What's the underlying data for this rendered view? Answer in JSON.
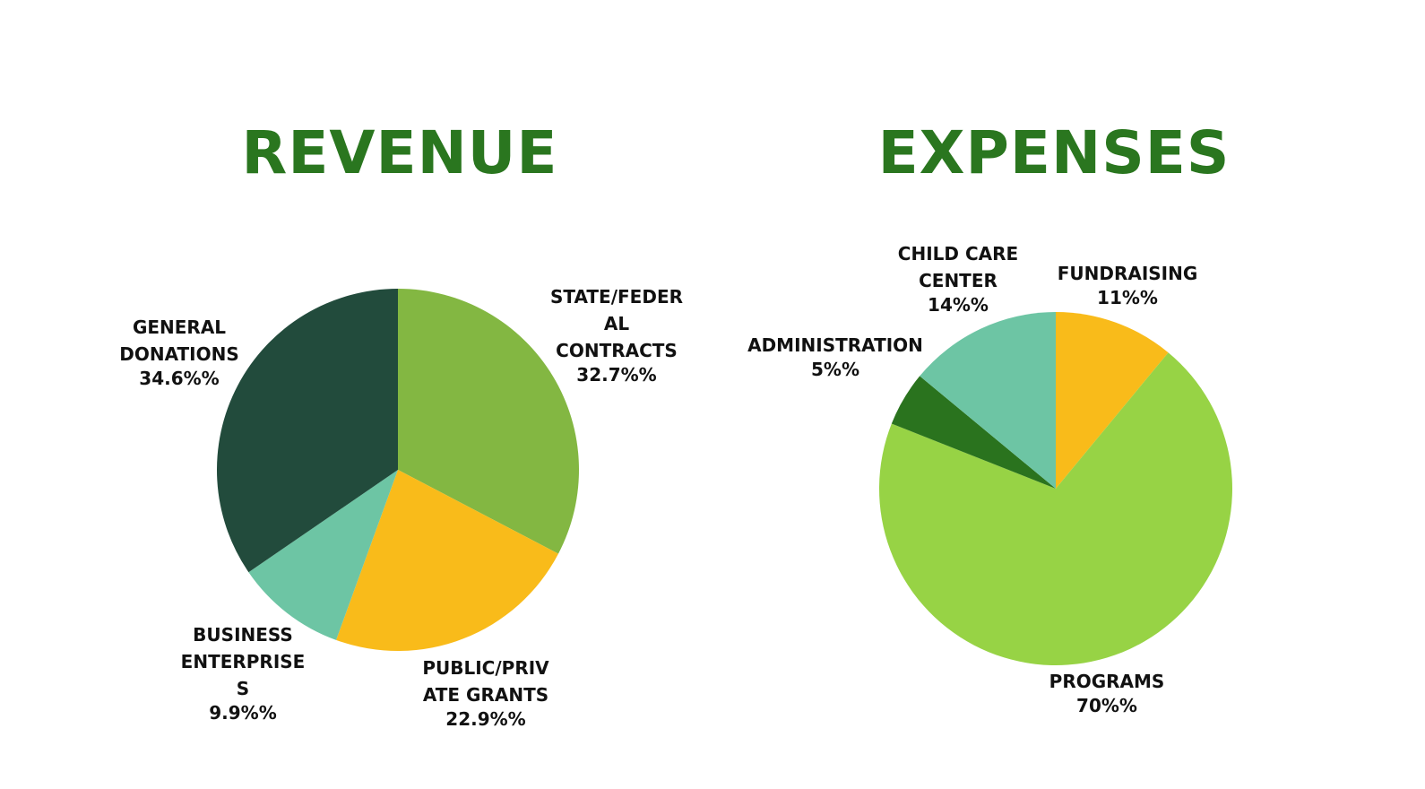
{
  "colors": {
    "title": "#2a761f",
    "label": "#111111",
    "dark_green": "#224b3c",
    "olive_green": "#83b742",
    "yellow": "#f9bb1a",
    "mint": "#6dc5a4",
    "lime": "#97d345",
    "forest_green": "#2a731e"
  },
  "chart_data": [
    {
      "type": "pie",
      "title": "REVENUE",
      "slices": [
        {
          "label_lines": [
            "STATE/FEDER",
            "AL",
            "CONTRACTS"
          ],
          "percent_text": "32.7%%",
          "value": 32.7,
          "color": "#83b742"
        },
        {
          "label_lines": [
            "PUBLIC/PRIV",
            "ATE GRANTS"
          ],
          "percent_text": "22.9%%",
          "value": 22.9,
          "color": "#f9bb1a"
        },
        {
          "label_lines": [
            "BUSINESS",
            "ENTERPRISE",
            "S"
          ],
          "percent_text": "9.9%%",
          "value": 9.9,
          "color": "#6dc5a4"
        },
        {
          "label_lines": [
            "GENERAL",
            "DONATIONS"
          ],
          "percent_text": "34.6%%",
          "value": 34.6,
          "color": "#224b3c"
        }
      ]
    },
    {
      "type": "pie",
      "title": "EXPENSES",
      "slices": [
        {
          "label_lines": [
            "FUNDRAISING"
          ],
          "percent_text": "11%%",
          "value": 11,
          "color": "#f9bb1a"
        },
        {
          "label_lines": [
            "PROGRAMS"
          ],
          "percent_text": "70%%",
          "value": 70,
          "color": "#97d345"
        },
        {
          "label_lines": [
            "ADMINISTRATION"
          ],
          "percent_text": "5%%",
          "value": 5,
          "color": "#2a731e"
        },
        {
          "label_lines": [
            "CHILD CARE",
            "CENTER"
          ],
          "percent_text": "14%%",
          "value": 14,
          "color": "#6dc5a4"
        }
      ]
    }
  ]
}
